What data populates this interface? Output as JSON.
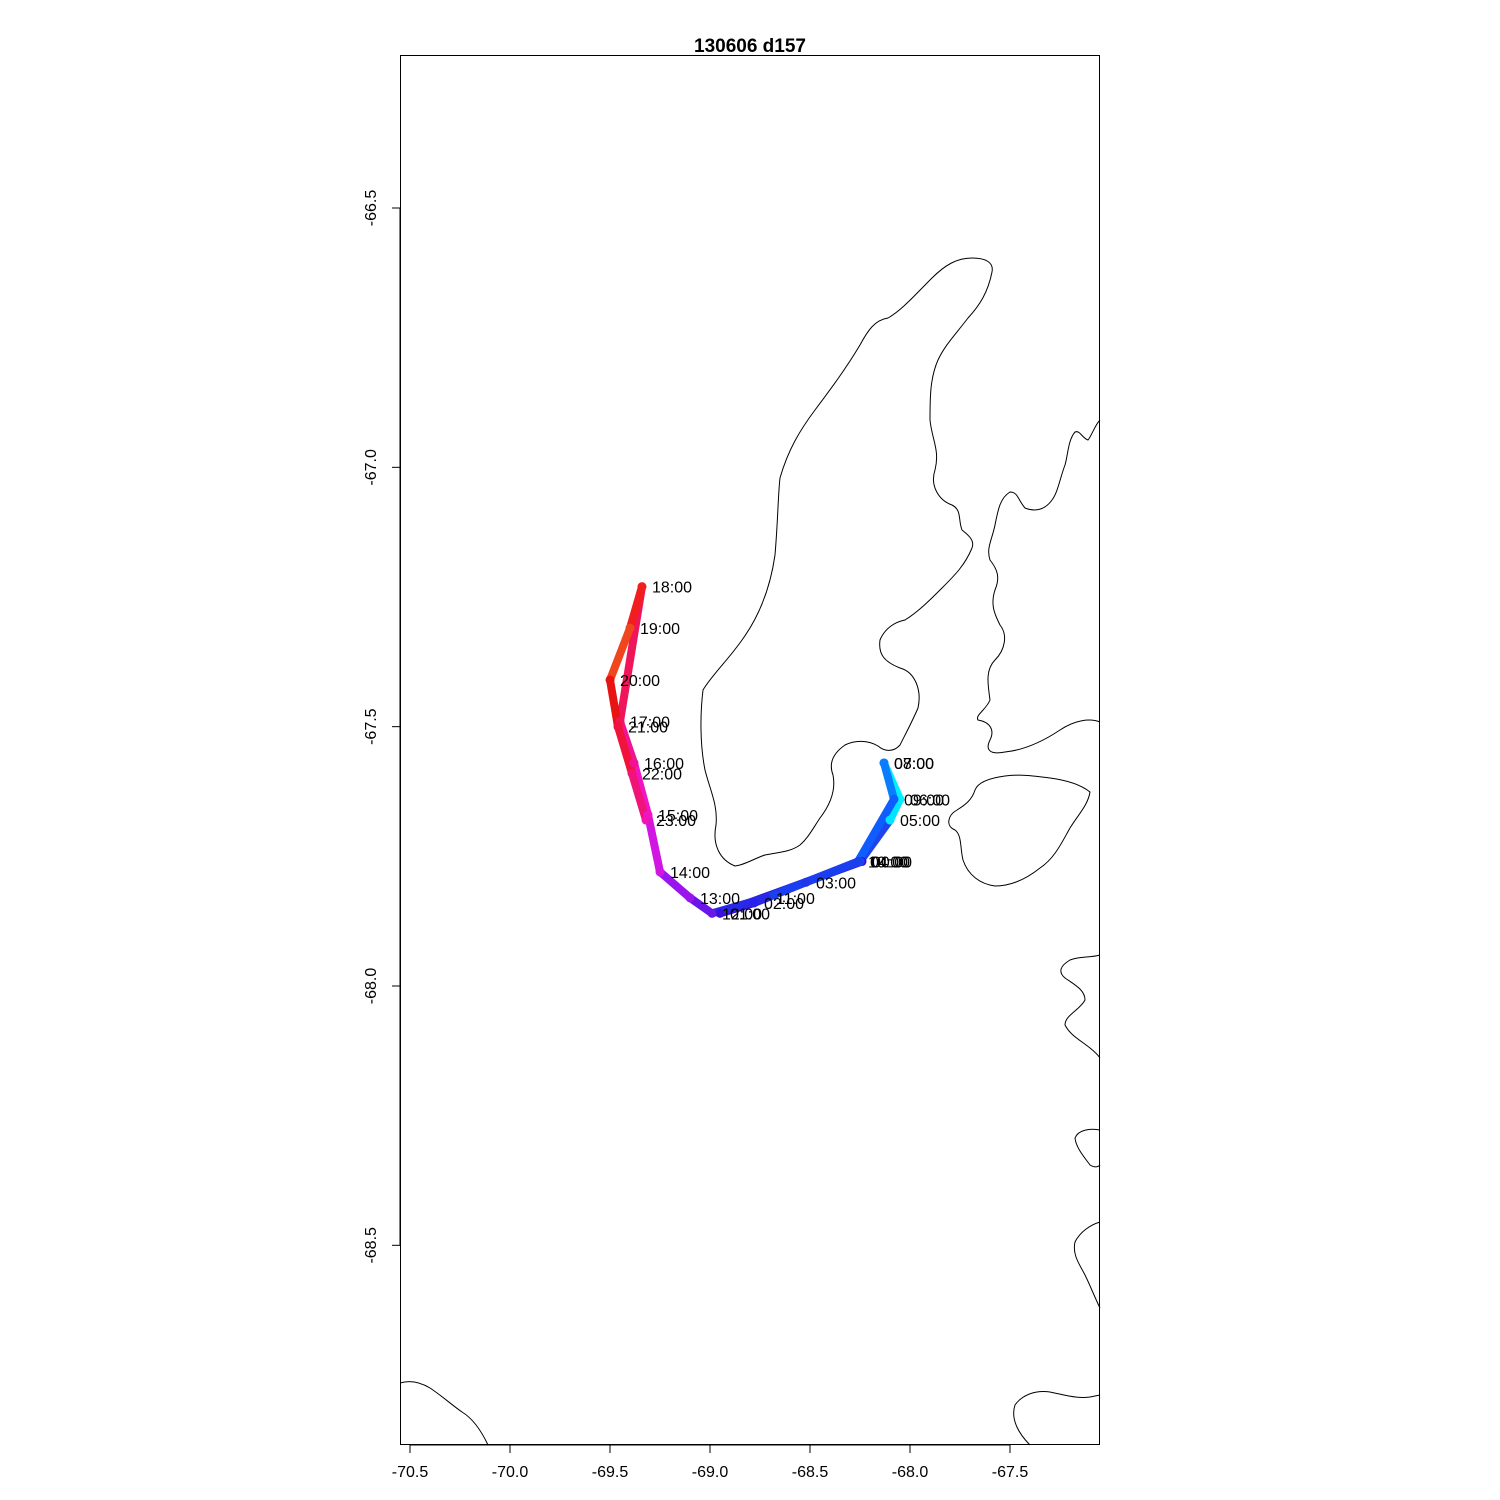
{
  "title": "130606   d157",
  "chart_data": {
    "type": "map-track",
    "title": "130606   d157",
    "xlim": [
      -70.55,
      -67.05
    ],
    "ylim": [
      -68.885,
      -66.205
    ],
    "x_ticks": [
      {
        "value": -70.5,
        "label": "-70.5"
      },
      {
        "value": -70.0,
        "label": "-70.0"
      },
      {
        "value": -69.5,
        "label": "-69.5"
      },
      {
        "value": -69.0,
        "label": "-69.0"
      },
      {
        "value": -68.5,
        "label": "-68.5"
      },
      {
        "value": -68.0,
        "label": "-68.0"
      },
      {
        "value": -67.5,
        "label": "-67.5"
      }
    ],
    "y_ticks": [
      {
        "value": -66.5,
        "label": "-66.5"
      },
      {
        "value": -67.0,
        "label": "-67.0"
      },
      {
        "value": -67.5,
        "label": "-67.5"
      },
      {
        "value": -68.0,
        "label": "-68.0"
      },
      {
        "value": -68.5,
        "label": "-68.5"
      }
    ],
    "track": [
      {
        "time": "00:00",
        "lon": -68.24,
        "lat": -67.76,
        "color": "#2f14e6"
      },
      {
        "time": "01:00",
        "lon": -68.95,
        "lat": -67.86,
        "color": "#3b10dd"
      },
      {
        "time": "02:00",
        "lon": -68.78,
        "lat": -67.84,
        "color": "#2a20e8"
      },
      {
        "time": "03:00",
        "lon": -68.52,
        "lat": -67.8,
        "color": "#2236ea"
      },
      {
        "time": "04:00",
        "lon": -68.25,
        "lat": -67.76,
        "color": "#1e44ee"
      },
      {
        "time": "05:00",
        "lon": -68.1,
        "lat": -67.68,
        "color": "#00e5ff"
      },
      {
        "time": "06:00",
        "lon": -68.05,
        "lat": -67.64,
        "color": "#00f0ff"
      },
      {
        "time": "07:00",
        "lon": -68.13,
        "lat": -67.57,
        "color": "#0a8cff"
      },
      {
        "time": "08:00",
        "lon": -68.13,
        "lat": -67.57,
        "color": "#0a7dff"
      },
      {
        "time": "09:00",
        "lon": -68.08,
        "lat": -67.64,
        "color": "#0f5cff"
      },
      {
        "time": "10:00",
        "lon": -68.26,
        "lat": -67.76,
        "color": "#1a3ff0"
      },
      {
        "time": "11:00",
        "lon": -68.72,
        "lat": -67.83,
        "color": "#2828e8"
      },
      {
        "time": "12:00",
        "lon": -68.99,
        "lat": -67.86,
        "color": "#6a16e8"
      },
      {
        "time": "13:00",
        "lon": -69.1,
        "lat": -67.83,
        "color": "#9a14ee"
      },
      {
        "time": "14:00",
        "lon": -69.25,
        "lat": -67.78,
        "color": "#d016e0"
      },
      {
        "time": "15:00",
        "lon": -69.31,
        "lat": -67.67,
        "color": "#f014c6"
      },
      {
        "time": "16:00",
        "lon": -69.38,
        "lat": -67.57,
        "color": "#f01495"
      },
      {
        "time": "17:00",
        "lon": -69.45,
        "lat": -67.49,
        "color": "#f0145a"
      },
      {
        "time": "18:00",
        "lon": -69.34,
        "lat": -67.23,
        "color": "#f01e1e"
      },
      {
        "time": "19:00",
        "lon": -69.4,
        "lat": -67.31,
        "color": "#f0461e"
      },
      {
        "time": "20:00",
        "lon": -69.5,
        "lat": -67.41,
        "color": "#e81414"
      },
      {
        "time": "21:00",
        "lon": -69.46,
        "lat": -67.5,
        "color": "#f0143c"
      },
      {
        "time": "22:00",
        "lon": -69.39,
        "lat": -67.59,
        "color": "#f01478"
      },
      {
        "time": "23:00",
        "lon": -69.32,
        "lat": -67.68,
        "color": "#f014b4"
      }
    ]
  }
}
